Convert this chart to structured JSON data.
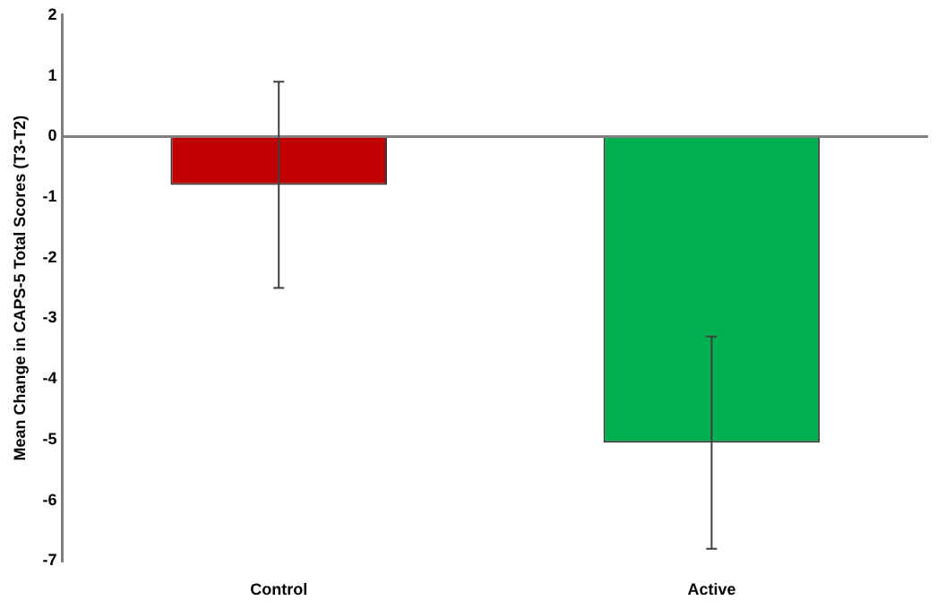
{
  "chart_data": {
    "type": "bar",
    "ylabel": "Mean Change in CAPS-5 Total Scores (T3-T2)",
    "categories": [
      "Control",
      "Active"
    ],
    "values": [
      -0.8,
      -5.05
    ],
    "colors": [
      "#c00000",
      "#00b050"
    ],
    "errors": [
      [
        -2.5,
        0.9
      ],
      [
        -6.8,
        -3.3
      ]
    ],
    "ylim": [
      -7,
      2
    ],
    "yticks": [
      -7,
      -6,
      -5,
      -4,
      -3,
      -2,
      -1,
      0,
      1,
      2
    ]
  }
}
